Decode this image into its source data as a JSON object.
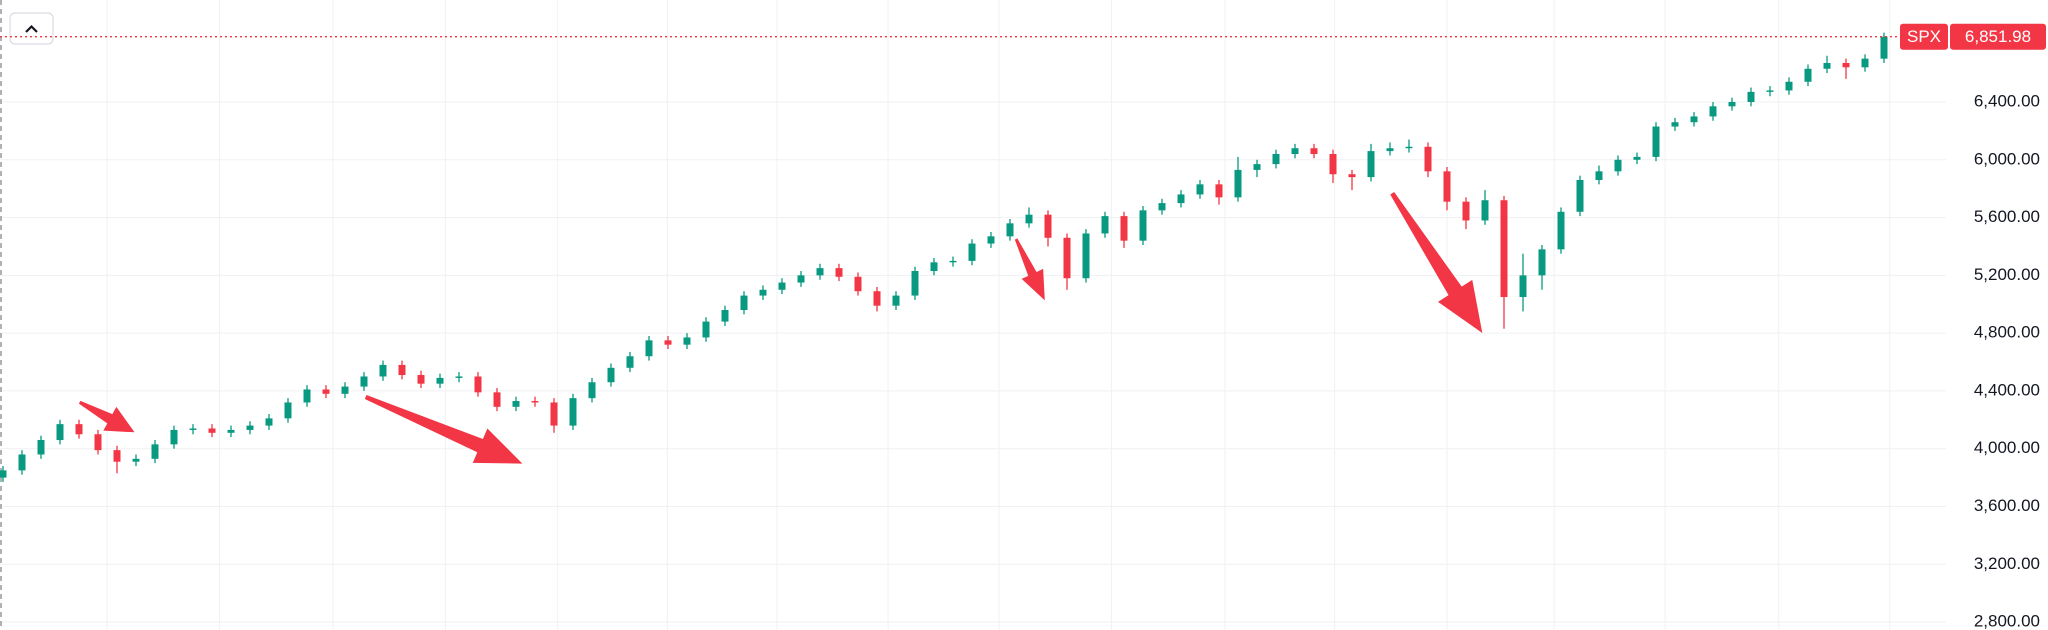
{
  "chart_data": {
    "type": "candlestick",
    "symbol": "SPX",
    "last_price": {
      "value": 6851.98,
      "label": "6,851.98"
    },
    "up_color": "#089981",
    "down_color": "#f23645",
    "grid": true,
    "ylim": [
      2745,
      7106
    ],
    "yticks": [
      {
        "value": 2800,
        "label": "2,800.00"
      },
      {
        "value": 3200,
        "label": "3,200.00"
      },
      {
        "value": 3600,
        "label": "3,600.00"
      },
      {
        "value": 4000,
        "label": "4,000.00"
      },
      {
        "value": 4400,
        "label": "4,400.00"
      },
      {
        "value": 4800,
        "label": "4,800.00"
      },
      {
        "value": 5200,
        "label": "5,200.00"
      },
      {
        "value": 5600,
        "label": "5,600.00"
      },
      {
        "value": 6000,
        "label": "6,000.00"
      },
      {
        "value": 6400,
        "label": "6,400.00"
      }
    ],
    "open": [
      3800,
      3850,
      3960,
      4060,
      4170,
      4100,
      3990,
      3910,
      3930,
      4030,
      4130,
      4140,
      4110,
      4130,
      4160,
      4210,
      4320,
      4410,
      4380,
      4430,
      4500,
      4580,
      4510,
      4450,
      4490,
      4500,
      4390,
      4290,
      4330,
      4320,
      4160,
      4350,
      4460,
      4560,
      4640,
      4750,
      4720,
      4770,
      4880,
      4960,
      5060,
      5100,
      5150,
      5200,
      5250,
      5190,
      5090,
      4990,
      5060,
      5230,
      5290,
      5300,
      5420,
      5470,
      5560,
      5620,
      5460,
      5180,
      5490,
      5610,
      5440,
      5650,
      5700,
      5760,
      5830,
      5740,
      5930,
      5970,
      6040,
      6080,
      6040,
      5900,
      5880,
      6060,
      6080,
      6090,
      5920,
      5710,
      5580,
      5720,
      5050,
      5200,
      5380,
      5640,
      5860,
      5920,
      6000,
      6020,
      6230,
      6260,
      6300,
      6370,
      6400,
      6470,
      6480,
      6540,
      6630,
      6670,
      6640,
      6700
    ],
    "high": [
      3880,
      3990,
      4090,
      4200,
      4200,
      4130,
      4020,
      3960,
      4060,
      4160,
      4170,
      4170,
      4160,
      4190,
      4240,
      4350,
      4440,
      4440,
      4460,
      4530,
      4610,
      4610,
      4540,
      4520,
      4530,
      4530,
      4420,
      4360,
      4360,
      4350,
      4380,
      4490,
      4590,
      4670,
      4780,
      4780,
      4800,
      4910,
      4990,
      5090,
      5130,
      5180,
      5230,
      5280,
      5280,
      5220,
      5120,
      5090,
      5260,
      5320,
      5330,
      5450,
      5500,
      5590,
      5670,
      5650,
      5490,
      5520,
      5640,
      5640,
      5680,
      5730,
      5790,
      5860,
      5860,
      6020,
      6000,
      6070,
      6110,
      6110,
      6070,
      5930,
      6110,
      6120,
      6140,
      6120,
      5950,
      5740,
      5790,
      5750,
      5350,
      5410,
      5670,
      5890,
      5960,
      6030,
      6050,
      6260,
      6290,
      6330,
      6400,
      6430,
      6500,
      6510,
      6570,
      6660,
      6720,
      6700,
      6730,
      6880
    ],
    "low": [
      3770,
      3820,
      3930,
      4030,
      4070,
      3960,
      3830,
      3880,
      3900,
      4000,
      4100,
      4080,
      4080,
      4100,
      4130,
      4180,
      4290,
      4350,
      4350,
      4400,
      4470,
      4480,
      4420,
      4420,
      4460,
      4360,
      4260,
      4260,
      4290,
      4110,
      4130,
      4320,
      4430,
      4530,
      4610,
      4690,
      4690,
      4740,
      4850,
      4930,
      5030,
      5070,
      5120,
      5170,
      5160,
      5060,
      4950,
      4960,
      5030,
      5200,
      5260,
      5270,
      5390,
      5440,
      5530,
      5400,
      5100,
      5150,
      5460,
      5390,
      5410,
      5620,
      5670,
      5730,
      5690,
      5710,
      5880,
      5940,
      6010,
      6010,
      5840,
      5790,
      5850,
      6030,
      6050,
      5880,
      5650,
      5520,
      5550,
      4830,
      4950,
      5100,
      5350,
      5610,
      5830,
      5890,
      5970,
      5990,
      6200,
      6230,
      6270,
      6340,
      6370,
      6440,
      6450,
      6510,
      6600,
      6560,
      6610,
      6670
    ],
    "close": [
      3850,
      3960,
      4060,
      4170,
      4100,
      3990,
      3910,
      3930,
      4030,
      4130,
      4140,
      4110,
      4130,
      4160,
      4210,
      4320,
      4410,
      4380,
      4430,
      4500,
      4580,
      4510,
      4450,
      4490,
      4500,
      4390,
      4290,
      4330,
      4320,
      4160,
      4350,
      4460,
      4560,
      4640,
      4750,
      4720,
      4770,
      4880,
      4960,
      5060,
      5100,
      5150,
      5200,
      5250,
      5190,
      5090,
      4990,
      5060,
      5230,
      5290,
      5300,
      5420,
      5470,
      5560,
      5620,
      5460,
      5180,
      5490,
      5610,
      5440,
      5650,
      5700,
      5760,
      5830,
      5740,
      5930,
      5970,
      6040,
      6080,
      6040,
      5900,
      5880,
      6060,
      6080,
      6090,
      5920,
      5710,
      5580,
      5720,
      5050,
      5200,
      5380,
      5640,
      5860,
      5920,
      6000,
      6020,
      6230,
      6260,
      6300,
      6370,
      6400,
      6470,
      6480,
      6540,
      6630,
      6670,
      6640,
      6700,
      6851.98
    ]
  }
}
